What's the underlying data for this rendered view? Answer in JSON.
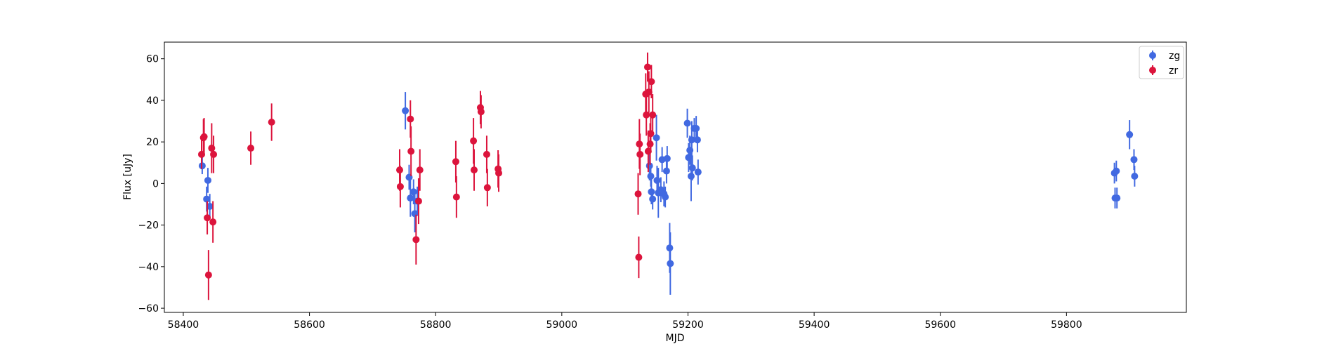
{
  "chart_data": {
    "type": "scatter",
    "xlabel": "MJD",
    "ylabel": "Flux [uJy]",
    "xlim": [
      58370,
      59990
    ],
    "ylim": [
      -62,
      68
    ],
    "xticks": [
      58400,
      58600,
      58800,
      59000,
      59200,
      59400,
      59600,
      59800
    ],
    "yticks": [
      -60,
      -40,
      -20,
      0,
      20,
      40,
      60
    ],
    "grid": false,
    "legend_position": "top-right",
    "series": [
      {
        "name": "zg",
        "color": "#4169E1",
        "points": [
          {
            "x": 58430,
            "y": 8.5,
            "err": 4
          },
          {
            "x": 58437,
            "y": -7.5,
            "err": 6
          },
          {
            "x": 58439,
            "y": 1.5,
            "err": 6
          },
          {
            "x": 58442,
            "y": -11,
            "err": 6
          },
          {
            "x": 58752,
            "y": 35,
            "err": 9
          },
          {
            "x": 58758,
            "y": 3,
            "err": 6
          },
          {
            "x": 58760,
            "y": -7,
            "err": 9
          },
          {
            "x": 58765,
            "y": -4,
            "err": 6
          },
          {
            "x": 58767,
            "y": -14.5,
            "err": 9
          },
          {
            "x": 58771,
            "y": -8.5,
            "err": 7
          },
          {
            "x": 59139,
            "y": 8.5,
            "err": 7
          },
          {
            "x": 59141,
            "y": 3.5,
            "err": 5
          },
          {
            "x": 59142,
            "y": -4,
            "err": 6
          },
          {
            "x": 59144,
            "y": -7.5,
            "err": 5
          },
          {
            "x": 59150,
            "y": 22,
            "err": 11
          },
          {
            "x": 59151,
            "y": 1.5,
            "err": 7
          },
          {
            "x": 59153,
            "y": -4.5,
            "err": 12
          },
          {
            "x": 59157,
            "y": -3,
            "err": 6
          },
          {
            "x": 59159,
            "y": 11.5,
            "err": 6
          },
          {
            "x": 59162,
            "y": -5,
            "err": 6
          },
          {
            "x": 59164,
            "y": -6.5,
            "err": 5
          },
          {
            "x": 59166,
            "y": 6,
            "err": 6
          },
          {
            "x": 59167,
            "y": 12,
            "err": 6
          },
          {
            "x": 59171,
            "y": -31,
            "err": 12
          },
          {
            "x": 59172,
            "y": -38.5,
            "err": 15
          },
          {
            "x": 59199,
            "y": 29,
            "err": 7
          },
          {
            "x": 59201,
            "y": 12.5,
            "err": 7
          },
          {
            "x": 59203,
            "y": 16,
            "err": 7
          },
          {
            "x": 59205,
            "y": 3.5,
            "err": 12
          },
          {
            "x": 59206,
            "y": 21,
            "err": 9
          },
          {
            "x": 59207,
            "y": 7.5,
            "err": 6
          },
          {
            "x": 59210,
            "y": 26.5,
            "err": 5
          },
          {
            "x": 59213,
            "y": 26.5,
            "err": 6
          },
          {
            "x": 59215,
            "y": 21,
            "err": 6
          },
          {
            "x": 59216,
            "y": 5.5,
            "err": 6
          },
          {
            "x": 59876,
            "y": 5,
            "err": 5
          },
          {
            "x": 59877,
            "y": -7,
            "err": 5
          },
          {
            "x": 59879,
            "y": 6,
            "err": 5
          },
          {
            "x": 59880,
            "y": -7,
            "err": 5
          },
          {
            "x": 59900,
            "y": 23.5,
            "err": 7
          },
          {
            "x": 59907,
            "y": 11.5,
            "err": 5
          },
          {
            "x": 59908,
            "y": 3.5,
            "err": 5
          }
        ]
      },
      {
        "name": "zr",
        "color": "#DC143C",
        "points": [
          {
            "x": 58429,
            "y": 14,
            "err": 7
          },
          {
            "x": 58432,
            "y": 22,
            "err": 9
          },
          {
            "x": 58433,
            "y": 22.5,
            "err": 9
          },
          {
            "x": 58438,
            "y": -16.5,
            "err": 8
          },
          {
            "x": 58440,
            "y": -44,
            "err": 12
          },
          {
            "x": 58445,
            "y": 17,
            "err": 12
          },
          {
            "x": 58447,
            "y": -18.5,
            "err": 10
          },
          {
            "x": 58448,
            "y": 14,
            "err": 9
          },
          {
            "x": 58507,
            "y": 17,
            "err": 8
          },
          {
            "x": 58540,
            "y": 29.5,
            "err": 9
          },
          {
            "x": 58743,
            "y": 6.5,
            "err": 10
          },
          {
            "x": 58744,
            "y": -1.5,
            "err": 10
          },
          {
            "x": 58760,
            "y": 31,
            "err": 9
          },
          {
            "x": 58761,
            "y": 15.5,
            "err": 12
          },
          {
            "x": 58769,
            "y": -27,
            "err": 12
          },
          {
            "x": 58773,
            "y": -8.5,
            "err": 11
          },
          {
            "x": 58775,
            "y": 6.5,
            "err": 10
          },
          {
            "x": 58832,
            "y": 10.5,
            "err": 10
          },
          {
            "x": 58833,
            "y": -6.5,
            "err": 10
          },
          {
            "x": 58860,
            "y": 20.5,
            "err": 11
          },
          {
            "x": 58861,
            "y": 6.5,
            "err": 10
          },
          {
            "x": 58871,
            "y": 36.5,
            "err": 8
          },
          {
            "x": 58872,
            "y": 34.5,
            "err": 8
          },
          {
            "x": 58881,
            "y": 14,
            "err": 9
          },
          {
            "x": 58882,
            "y": -2,
            "err": 9
          },
          {
            "x": 58899,
            "y": 7,
            "err": 9
          },
          {
            "x": 58900,
            "y": 5,
            "err": 9
          },
          {
            "x": 59121,
            "y": -5,
            "err": 10
          },
          {
            "x": 59122,
            "y": -35.5,
            "err": 10
          },
          {
            "x": 59123,
            "y": 19,
            "err": 12
          },
          {
            "x": 59124,
            "y": 14,
            "err": 10
          },
          {
            "x": 59133,
            "y": 43,
            "err": 10
          },
          {
            "x": 59134,
            "y": 33,
            "err": 10
          },
          {
            "x": 59136,
            "y": 56,
            "err": 7
          },
          {
            "x": 59137,
            "y": 15.5,
            "err": 10
          },
          {
            "x": 59138,
            "y": 44,
            "err": 10
          },
          {
            "x": 59140,
            "y": 19,
            "err": 10
          },
          {
            "x": 59141,
            "y": 24,
            "err": 9
          },
          {
            "x": 59142,
            "y": 49,
            "err": 8
          },
          {
            "x": 59144,
            "y": 33,
            "err": 10
          }
        ]
      }
    ]
  }
}
